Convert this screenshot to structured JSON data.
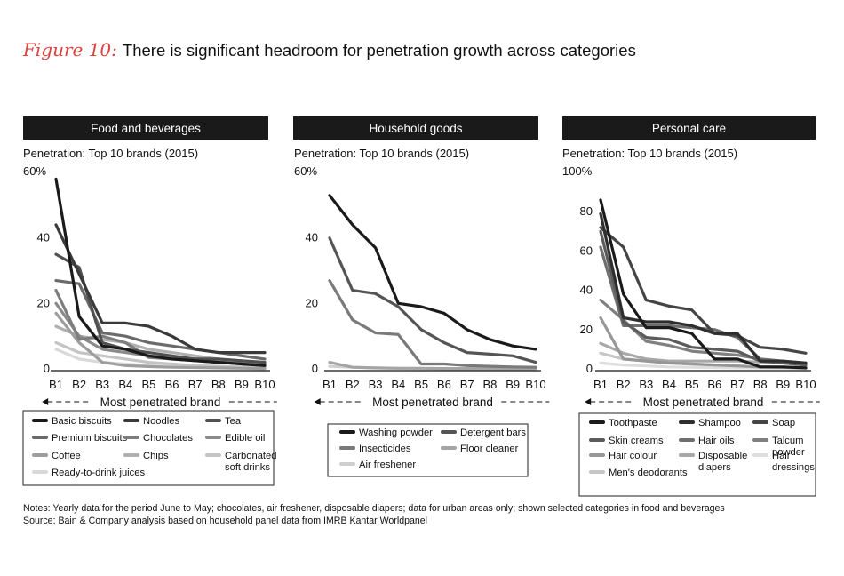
{
  "title": {
    "figure_label": "Figure 10:",
    "text": "There is significant headroom for penetration growth across categories"
  },
  "colors": {
    "header_bg": "#1a1a1a",
    "header_text": "#ffffff",
    "accent": "#e0403a"
  },
  "chart_data": [
    {
      "type": "line",
      "title": "Food and beverages",
      "subtitle": "Penetration: Top 10 brands (2015)",
      "ylabel_top": "60%",
      "ylim": [
        0,
        60
      ],
      "yticks": [
        {
          "value": 0,
          "label": "0"
        },
        {
          "value": 20,
          "label": "20"
        },
        {
          "value": 40,
          "label": "40"
        },
        {
          "value": 60,
          "label": "60%"
        }
      ],
      "categories": [
        "B1",
        "B2",
        "B3",
        "B4",
        "B5",
        "B6",
        "B7",
        "B8",
        "B9",
        "B10"
      ],
      "xlabel": "Most penetrated brand",
      "series": [
        {
          "name": "Basic biscuits",
          "color": "#1a1a1a",
          "values": [
            58,
            16,
            7,
            6,
            4,
            3,
            2.5,
            2,
            1.5,
            1
          ]
        },
        {
          "name": "Noodles",
          "color": "#3a3a3a",
          "values": [
            44,
            29,
            14,
            14,
            13,
            10,
            6,
            5,
            5,
            5
          ]
        },
        {
          "name": "Tea",
          "color": "#505050",
          "values": [
            35,
            31,
            8,
            6,
            5,
            4,
            3,
            3,
            2.5,
            2
          ]
        },
        {
          "name": "Premium biscuits",
          "color": "#6a6a6a",
          "values": [
            27,
            26,
            11,
            10,
            8,
            7,
            6,
            5,
            4,
            3
          ]
        },
        {
          "name": "Chocolates",
          "color": "#7d7d7d",
          "values": [
            24,
            9,
            10,
            8,
            3.5,
            3,
            2.5,
            2,
            1.5,
            1
          ]
        },
        {
          "name": "Edible oil",
          "color": "#8a8a8a",
          "values": [
            20,
            10,
            6,
            5,
            4,
            3.5,
            3,
            2.5,
            2,
            1.5
          ]
        },
        {
          "name": "Coffee",
          "color": "#9d9d9d",
          "values": [
            17,
            8,
            2,
            1,
            0.7,
            0.5,
            0.4,
            0.3,
            0.2,
            0.1
          ]
        },
        {
          "name": "Chips",
          "color": "#b0b0b0",
          "values": [
            13,
            10,
            9,
            8,
            6,
            5,
            4,
            3,
            2.5,
            2
          ]
        },
        {
          "name": "Carbonated soft drinks",
          "color": "#c4c4c4",
          "values": [
            8,
            5,
            4,
            3,
            2,
            1.5,
            1,
            0.8,
            0.6,
            0.5
          ]
        },
        {
          "name": "Ready-to-drink juices",
          "color": "#d9d9d9",
          "values": [
            6,
            3,
            2,
            1.5,
            1,
            0.8,
            0.6,
            0.5,
            0.4,
            0.3
          ]
        }
      ],
      "legend": [
        [
          "Basic biscuits",
          "Noodles",
          "Tea"
        ],
        [
          "Premium biscuits",
          "Chocolates",
          "Edible oil"
        ],
        [
          "Coffee",
          "Chips",
          "Carbonated soft drinks"
        ],
        [
          "Ready-to-drink juices"
        ]
      ]
    },
    {
      "type": "line",
      "title": "Household goods",
      "subtitle": "Penetration: Top 10 brands (2015)",
      "ylabel_top": "60%",
      "ylim": [
        0,
        60
      ],
      "yticks": [
        {
          "value": 0,
          "label": "0"
        },
        {
          "value": 20,
          "label": "20"
        },
        {
          "value": 40,
          "label": "40"
        },
        {
          "value": 60,
          "label": "60%"
        }
      ],
      "categories": [
        "B1",
        "B2",
        "B3",
        "B4",
        "B5",
        "B6",
        "B7",
        "B8",
        "B9",
        "B10"
      ],
      "xlabel": "Most penetrated brand",
      "series": [
        {
          "name": "Washing powder",
          "color": "#1a1a1a",
          "values": [
            53,
            44,
            37,
            20,
            19,
            17,
            12,
            9,
            7,
            6
          ]
        },
        {
          "name": "Detergent bars",
          "color": "#555555",
          "values": [
            40,
            24,
            23,
            19,
            12,
            8,
            5,
            4.5,
            4,
            2
          ]
        },
        {
          "name": "Insecticides",
          "color": "#7a7a7a",
          "values": [
            27,
            15,
            11,
            10.5,
            1.5,
            1.5,
            1,
            0.8,
            0.6,
            0.5
          ]
        },
        {
          "name": "Floor cleaner",
          "color": "#a5a5a5",
          "values": [
            2,
            0.5,
            0.3,
            0.2,
            0.2,
            0.1,
            0.1,
            0.1,
            0.1,
            0.1
          ]
        },
        {
          "name": "Air freshener",
          "color": "#cfcfcf",
          "values": [
            0.8,
            0.5,
            0.3,
            0.2,
            0.1,
            0.1,
            0.1,
            0.1,
            0.1,
            0.1
          ]
        }
      ],
      "legend": [
        [
          "Washing powder",
          "Detergent bars"
        ],
        [
          "Insecticides",
          "Floor cleaner"
        ],
        [
          "Air freshener"
        ]
      ]
    },
    {
      "type": "line",
      "title": "Personal care",
      "subtitle": "Penetration: Top 10 brands (2015)",
      "ylabel_top": "100%",
      "ylim": [
        0,
        100
      ],
      "yticks": [
        {
          "value": 0,
          "label": "0"
        },
        {
          "value": 20,
          "label": "20"
        },
        {
          "value": 40,
          "label": "40"
        },
        {
          "value": 60,
          "label": "60"
        },
        {
          "value": 80,
          "label": "80"
        },
        {
          "value": 100,
          "label": "100%"
        }
      ],
      "categories": [
        "B1",
        "B2",
        "B3",
        "B4",
        "B5",
        "B6",
        "B7",
        "B8",
        "B9",
        "B10"
      ],
      "xlabel": "Most penetrated brand",
      "series": [
        {
          "name": "Toothpaste",
          "color": "#1a1a1a",
          "values": [
            86,
            38,
            21,
            21,
            18,
            5,
            5,
            1,
            1,
            0.5
          ]
        },
        {
          "name": "Shampoo",
          "color": "#2e2e2e",
          "values": [
            79,
            26,
            24,
            24,
            22,
            18,
            18,
            4,
            4,
            3
          ]
        },
        {
          "name": "Soap",
          "color": "#454545",
          "values": [
            72,
            62,
            35,
            32,
            30,
            18,
            17,
            11,
            10,
            8
          ]
        },
        {
          "name": "Skin creams",
          "color": "#5c5c5c",
          "values": [
            70,
            24,
            16,
            15,
            11,
            10,
            9,
            4,
            3,
            2
          ]
        },
        {
          "name": "Hair oils",
          "color": "#6e6e6e",
          "values": [
            62,
            22,
            22,
            22,
            21,
            20,
            16,
            5,
            4,
            3
          ]
        },
        {
          "name": "Talcum powder",
          "color": "#808080",
          "values": [
            35,
            25,
            14,
            12,
            9,
            8,
            7,
            5,
            3,
            2
          ]
        },
        {
          "name": "Hair colour",
          "color": "#979797",
          "values": [
            26,
            5,
            4,
            3,
            2.5,
            2,
            1.5,
            1,
            0.8,
            0.5
          ]
        },
        {
          "name": "Disposable diapers",
          "color": "#a8a8a8",
          "values": [
            13,
            8,
            5,
            4,
            4,
            4,
            4,
            3.5,
            3,
            2
          ]
        },
        {
          "name": "Men's deodorants",
          "color": "#c6c6c6",
          "values": [
            8,
            5,
            4,
            3,
            2.5,
            2,
            1.5,
            1,
            0.8,
            0.5
          ]
        },
        {
          "name": "Hair dressings",
          "color": "#dddddd",
          "values": [
            3,
            2,
            1.5,
            1,
            0.8,
            0.6,
            0.5,
            0.4,
            0.3,
            0.2
          ]
        }
      ],
      "legend": [
        [
          "Toothpaste",
          "Shampoo",
          "Soap"
        ],
        [
          "Skin creams",
          "Hair oils",
          "Talcum powder"
        ],
        [
          "Hair colour",
          "Disposable diapers",
          "Hair dressings"
        ],
        [
          "Men's deodorants"
        ]
      ]
    }
  ],
  "notes": [
    "Notes: Yearly data for the period June to May; chocolates, air freshener, disposable diapers; data for urban areas only; shown selected categories in food and beverages",
    "Source: Bain & Company analysis based on household panel data from IMRB Kantar Worldpanel"
  ]
}
